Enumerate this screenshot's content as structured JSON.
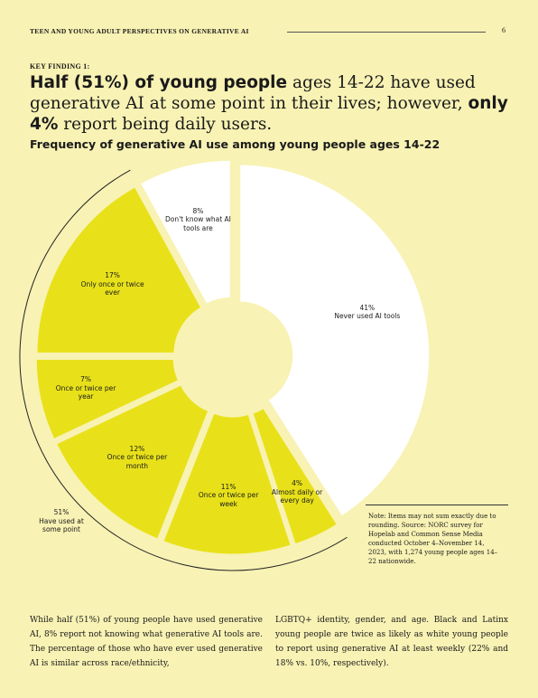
{
  "header": {
    "running_title": "TEEN AND YOUNG ADULT PERSPECTIVES ON GENERATIVE AI",
    "page_number": "6"
  },
  "finding": {
    "label": "KEY FINDING 1:",
    "headline": [
      {
        "text": "Half (51%) of young people",
        "bold": true
      },
      {
        "text": " ages 14-22 have used generative AI at some point in their lives; however, ",
        "bold": false
      },
      {
        "text": "only 4%",
        "bold": true
      },
      {
        "text": " report being daily users.",
        "bold": false
      }
    ]
  },
  "chart_data": {
    "type": "pie",
    "title": "Frequency of generative AI use among young people ages 14-22",
    "categories": [
      "Never used AI tools",
      "Almost daily or every day",
      "Once or twice per week",
      "Once or twice per month",
      "Once or twice per year",
      "Only once or twice ever",
      "Don't know what AI tools are"
    ],
    "values": [
      41,
      4,
      11,
      12,
      7,
      17,
      8
    ],
    "value_labels": [
      "41%",
      "4%",
      "11%",
      "12%",
      "7%",
      "17%",
      "8%"
    ],
    "colors": [
      "#ffffff",
      "#e8e11a",
      "#e8e11a",
      "#e8e11a",
      "#e8e11a",
      "#e8e11a",
      "#ffffff"
    ],
    "annotation": {
      "value": 51,
      "value_label": "51%",
      "text": "Have used at some point"
    },
    "note": "Note: Items may not sum exactly due to rounding. Source: NORC survey for Hopelab and Common Sense Media conducted October 4–November 14, 2023, with 1,274 young people ages 14–22 nationwide."
  },
  "body": [
    "While half (51%) of young people have used generative AI, 8% report not knowing what generative AI tools are. The percentage of those who have ever used generative AI is similar across race/ethnicity,",
    "LGBTQ+ identity, gender, and age. Black and Latinx young people are twice as likely as white young people to report using generative AI at least weekly (22% and 18% vs. 10%, respectively)."
  ]
}
